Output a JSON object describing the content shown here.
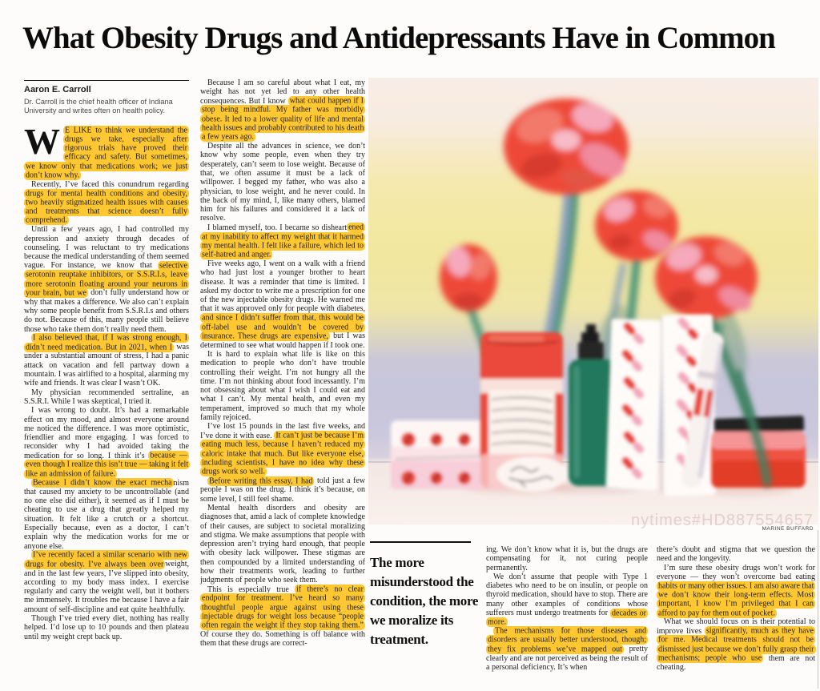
{
  "masthead": {
    "title": "What Obesity Drugs and Antidepressants Have in Common"
  },
  "byline": {
    "author": "Aaron E. Carroll",
    "bio": "Dr. Carroll is the chief health officer of Indiana University and writes often on health policy."
  },
  "pull_quote": {
    "text": "The more misunderstood the condition, the more we moralize its treatment."
  },
  "illustration": {
    "credit": "MARINE BUFFARD",
    "watermark": "nytimes#HD887554657"
  },
  "colors": {
    "highlight": "#ffc832",
    "accent_red": "#ee4b38",
    "stem_green": "#4f9478",
    "bottle_green": "#20785c"
  },
  "article": {
    "columns": [
      {
        "paragraphs": [
          {
            "dropcap": "W",
            "indent": false,
            "segments": [
              {
                "text": "E LIKE to think we understand the drugs we take, especially after rigorous trials have proved their efficacy and safety. But sometimes, we know only that medications work; we just don’t know why.",
                "highlight": true
              }
            ]
          },
          {
            "indent": true,
            "segments": [
              {
                "text": "Recently, I’ve faced this conundrum regarding ",
                "highlight": false
              },
              {
                "text": "drugs for mental health conditions and obesity, two heavily stigmatized health issues with causes and treatments that science doesn’t fully comprehend.",
                "highlight": true
              }
            ]
          },
          {
            "indent": true,
            "segments": [
              {
                "text": "Until a few years ago, I had controlled my depression and anxiety through decades of counseling. I was reluctant to try medications because the medical understanding of them seemed vague. For instance, we know that ",
                "highlight": false
              },
              {
                "text": "selective serotonin reuptake inhibitors, or S.S.R.I.s, leave more serotonin floating around your neurons in your brain, but we",
                "highlight": true
              },
              {
                "text": " don’t fully understand how or why that makes a difference. We also can’t explain why some people benefit from S.S.R.I.s and others do not. Because of this, many people still believe those who take them don’t really need them.",
                "highlight": false
              }
            ]
          },
          {
            "indent": true,
            "segments": [
              {
                "text": "I also believed that, if I was strong enough, I didn’t need medication. But in 2021, when I",
                "highlight": true
              },
              {
                "text": " was under a substantial amount of stress, I had a panic attack on vacation and fell partway down a mountain. I was airlifted to a hospital, alarming my wife and friends. It was clear I wasn’t OK.",
                "highlight": false
              }
            ]
          },
          {
            "indent": true,
            "segments": [
              {
                "text": "My physician recommended sertraline, an S.S.R.I. While I was skeptical, I tried it.",
                "highlight": false
              }
            ]
          },
          {
            "indent": true,
            "segments": [
              {
                "text": "I was wrong to doubt. It’s had a remarkable effect on my mood, and almost everyone around me noticed the difference. I was more optimistic, friendlier and more engaging. I was forced to reconsider why I had avoided taking the medication for so long. I think it’s ",
                "highlight": false
              },
              {
                "text": "because — even though I realize this isn’t true — taking it felt like an admission of failure.",
                "highlight": true
              }
            ]
          },
          {
            "indent": true,
            "segments": [
              {
                "text": "Because I didn’t know the exact mecha",
                "highlight": true
              },
              {
                "text": "nism that caused my anxiety to be uncontrollable (and no one else did either), it seemed as if I must be cheating to use a drug that greatly helped my situation. It felt like a crutch or a shortcut. Especially because, even as a doctor, I can’t explain why the medication works for me or anyone else.",
                "highlight": false
              }
            ]
          },
          {
            "indent": true,
            "segments": [
              {
                "text": "I’ve recently faced a similar scenario with new drugs for obesity. I’ve always been over",
                "highlight": true
              },
              {
                "text": "weight, and in the last few years, I’ve slipped into obesity, according to my body mass index. I exercise regularly and carry the weight well, but it bothers me immensely. It troubles me because I have a fair amount of self-discipline and eat quite healthfully.",
                "highlight": false
              }
            ]
          },
          {
            "indent": true,
            "segments": [
              {
                "text": "Though I’ve tried every diet, nothing has really helped. I’d lose up to 10 pounds and then plateau until my weight crept back up.",
                "highlight": false
              }
            ]
          }
        ]
      },
      {
        "paragraphs": [
          {
            "indent": true,
            "segments": [
              {
                "text": "Because I am so careful about what I eat, my weight has not yet led to any other health consequences. But I know ",
                "highlight": false
              },
              {
                "text": "what could happen if I stop being mindful. My father was morbidly obese. It led to a lower quality of life and mental health issues and probably contributed to his death a few years ago.",
                "highlight": true
              }
            ]
          },
          {
            "indent": true,
            "segments": [
              {
                "text": "Despite all the advances in science, we don’t know why some people, even when they try desperately, can’t seem to lose weight. Because of that, we often assume it must be a lack of willpower. I begged my father, who was also a physician, to lose weight, and he never could. In the back of my mind, I, like many others, blamed him for his failures and considered it a lack of resolve.",
                "highlight": false
              }
            ]
          },
          {
            "indent": true,
            "segments": [
              {
                "text": "I blamed myself, too. I became so disheart",
                "highlight": false
              },
              {
                "text": "ened at my inability to affect my weight that it harmed my mental health. I felt like a failure, which led to self-hatred and anger.",
                "highlight": true
              }
            ]
          },
          {
            "indent": true,
            "segments": [
              {
                "text": "Five weeks ago, I went on a walk with a friend who had just lost a younger brother to heart disease. It was a reminder that time is limited. I asked my doctor to write me a prescription for one of the new injectable obesity drugs. He warned me that it was approved only for people with diabetes, ",
                "highlight": false
              },
              {
                "text": "and since I didn’t suffer from that, this would be off-label use and wouldn’t be covered by insurance. These drugs are expensive,",
                "highlight": true
              },
              {
                "text": " but I was determined to see what would happen if I took one.",
                "highlight": false
              }
            ]
          },
          {
            "indent": true,
            "segments": [
              {
                "text": "It is hard to explain what life is like on this medication to people who don’t have trouble controlling their weight. I’m not hungry all the time. I’m not thinking about food incessantly. I’m not obsessing about what I wish I could eat and what I can’t. My mental health, and even my temperament, improved so much that my whole family rejoiced.",
                "highlight": false
              }
            ]
          },
          {
            "indent": true,
            "segments": [
              {
                "text": "I’ve lost 15 pounds in the last five weeks, and I’ve done it with ease. ",
                "highlight": false
              },
              {
                "text": "It can’t just be because I’m eating much less, because I haven’t reduced my caloric intake that much. But like everyone else, including scientists, I have no idea why these drugs work so well.",
                "highlight": true
              }
            ]
          },
          {
            "indent": true,
            "segments": [
              {
                "text": "Before writing this essay, I had",
                "highlight": true
              },
              {
                "text": " told just a few people I was on the drug. I think it’s because, on some level, I still feel shame.",
                "highlight": false
              }
            ]
          },
          {
            "indent": true,
            "segments": [
              {
                "text": "Mental health disorders and obesity are diagnoses that, amid a lack of complete knowledge of their causes, are subject to societal moralizing and stigma. We make assumptions that people with depression aren’t trying hard enough, that people with obesity lack willpower. These stigmas are then compounded by a limited understanding of how their treatments work, leading to further judgments of people who seek them.",
                "highlight": false
              }
            ]
          },
          {
            "indent": true,
            "segments": [
              {
                "text": "This is especially true ",
                "highlight": false
              },
              {
                "text": "if there’s no clear endpoint for treatment. I’ve heard so many thoughtful people argue against using these injectable drugs for weight loss because “people often regain the weight if they stop taking them.”",
                "highlight": true
              },
              {
                "text": " Of course they do. Something is off balance with them that these drugs are correct-",
                "highlight": false
              }
            ]
          }
        ]
      },
      {
        "paragraphs": [
          {
            "indent": false,
            "segments": [
              {
                "text": "ing. We don’t know what it is, but the drugs are compensating for it, not curing people permanently.",
                "highlight": false
              }
            ]
          },
          {
            "indent": true,
            "segments": [
              {
                "text": "We don’t assume that people with Type 1 diabetes who need to be on insulin, or people on thyroid medication, should have to stop. There are many other examples of conditions whose sufferers must undergo treatments for ",
                "highlight": false
              },
              {
                "text": "decades or more.",
                "highlight": true
              }
            ]
          },
          {
            "indent": true,
            "segments": [
              {
                "text": "The mechanisms for those diseases and disorders are usually better understood, though; they fix problems we’ve mapped out",
                "highlight": true
              },
              {
                "text": " pretty clearly and are not perceived as being the result of a personal deficiency. It’s when",
                "highlight": false
              }
            ]
          }
        ]
      },
      {
        "paragraphs": [
          {
            "indent": false,
            "segments": [
              {
                "text": "there’s doubt and stigma that we question the need and the longevity.",
                "highlight": false
              }
            ]
          },
          {
            "indent": true,
            "segments": [
              {
                "text": "I’m sure these obesity drugs won’t work for everyone — they won’t overcome bad eating ",
                "highlight": false
              },
              {
                "text": "habits or many other issues. I am also aware that we don’t know their long-term effects. Most important, I know I’m privileged that I can afford to pay for them out of pocket.",
                "highlight": true
              }
            ]
          },
          {
            "indent": true,
            "segments": [
              {
                "text": "What we should focus on is their potential to improve lives ",
                "highlight": false
              },
              {
                "text": "significantly, much as they have for me. Medical treatments should not be dismissed just because we don’t fully grasp their mechanisms; people who use",
                "highlight": true
              },
              {
                "text": " them are not cheating.",
                "highlight": false
              }
            ]
          }
        ]
      }
    ]
  }
}
